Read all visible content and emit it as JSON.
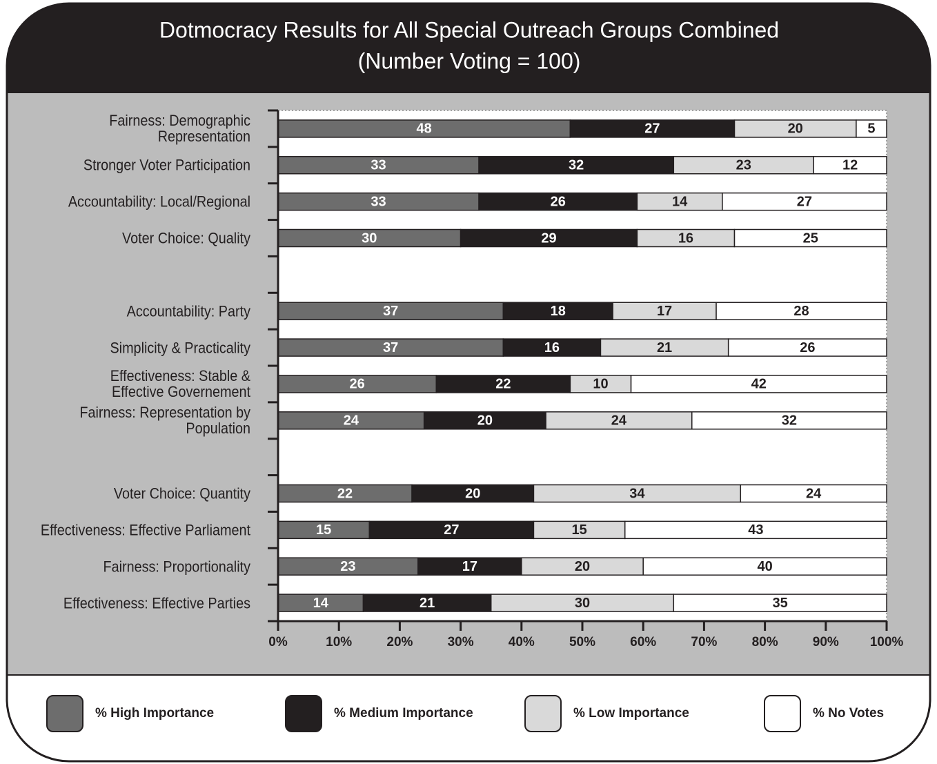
{
  "chart_data": {
    "type": "stacked-bar-horizontal",
    "title": "Dotmocracy Results for All Special Outreach Groups Combined",
    "subtitle": "(Number Voting = 100)",
    "categories": [
      "Fairness: Demographic\nRepresentation",
      "Stronger Voter Participation",
      "Accountability: Local/Regional",
      "Voter Choice: Quality",
      null,
      "Accountability: Party",
      "Simplicity & Practicality",
      "Effectiveness: Stable &\nEffective Governement",
      "Fairness: Representation by\nPopulation",
      null,
      "Voter Choice: Quantity",
      "Effectiveness: Effective Parliament",
      "Fairness: Proportionality",
      "Effectiveness: Effective Parties"
    ],
    "series": [
      {
        "name": "% High Importance",
        "color": "#6d6d6d",
        "values": [
          48,
          33,
          33,
          30,
          null,
          37,
          37,
          26,
          24,
          null,
          22,
          15,
          23,
          14
        ]
      },
      {
        "name": "% Medium Importance",
        "color": "#231f20",
        "values": [
          27,
          32,
          26,
          29,
          null,
          18,
          16,
          22,
          20,
          null,
          20,
          27,
          17,
          21
        ]
      },
      {
        "name": "% Low Importance",
        "color": "#d9d9d9",
        "values": [
          20,
          23,
          14,
          16,
          null,
          17,
          21,
          10,
          24,
          null,
          34,
          15,
          20,
          30
        ]
      },
      {
        "name": "% No Votes",
        "color": "#ffffff",
        "values": [
          5,
          12,
          27,
          25,
          null,
          28,
          26,
          42,
          32,
          null,
          24,
          43,
          40,
          35
        ]
      }
    ],
    "xlim": [
      0,
      100
    ],
    "xticks": [
      {
        "value": 0,
        "label": "0%"
      },
      {
        "value": 10,
        "label": "10%"
      },
      {
        "value": 20,
        "label": "20%"
      },
      {
        "value": 30,
        "label": "30%"
      },
      {
        "value": 40,
        "label": "40%"
      },
      {
        "value": 50,
        "label": "50%"
      },
      {
        "value": 60,
        "label": "60%"
      },
      {
        "value": 70,
        "label": "70%"
      },
      {
        "value": 80,
        "label": "80%"
      },
      {
        "value": 90,
        "label": "90%"
      },
      {
        "value": 100,
        "label": "100%"
      }
    ],
    "grid": false,
    "legend": "bottom"
  }
}
